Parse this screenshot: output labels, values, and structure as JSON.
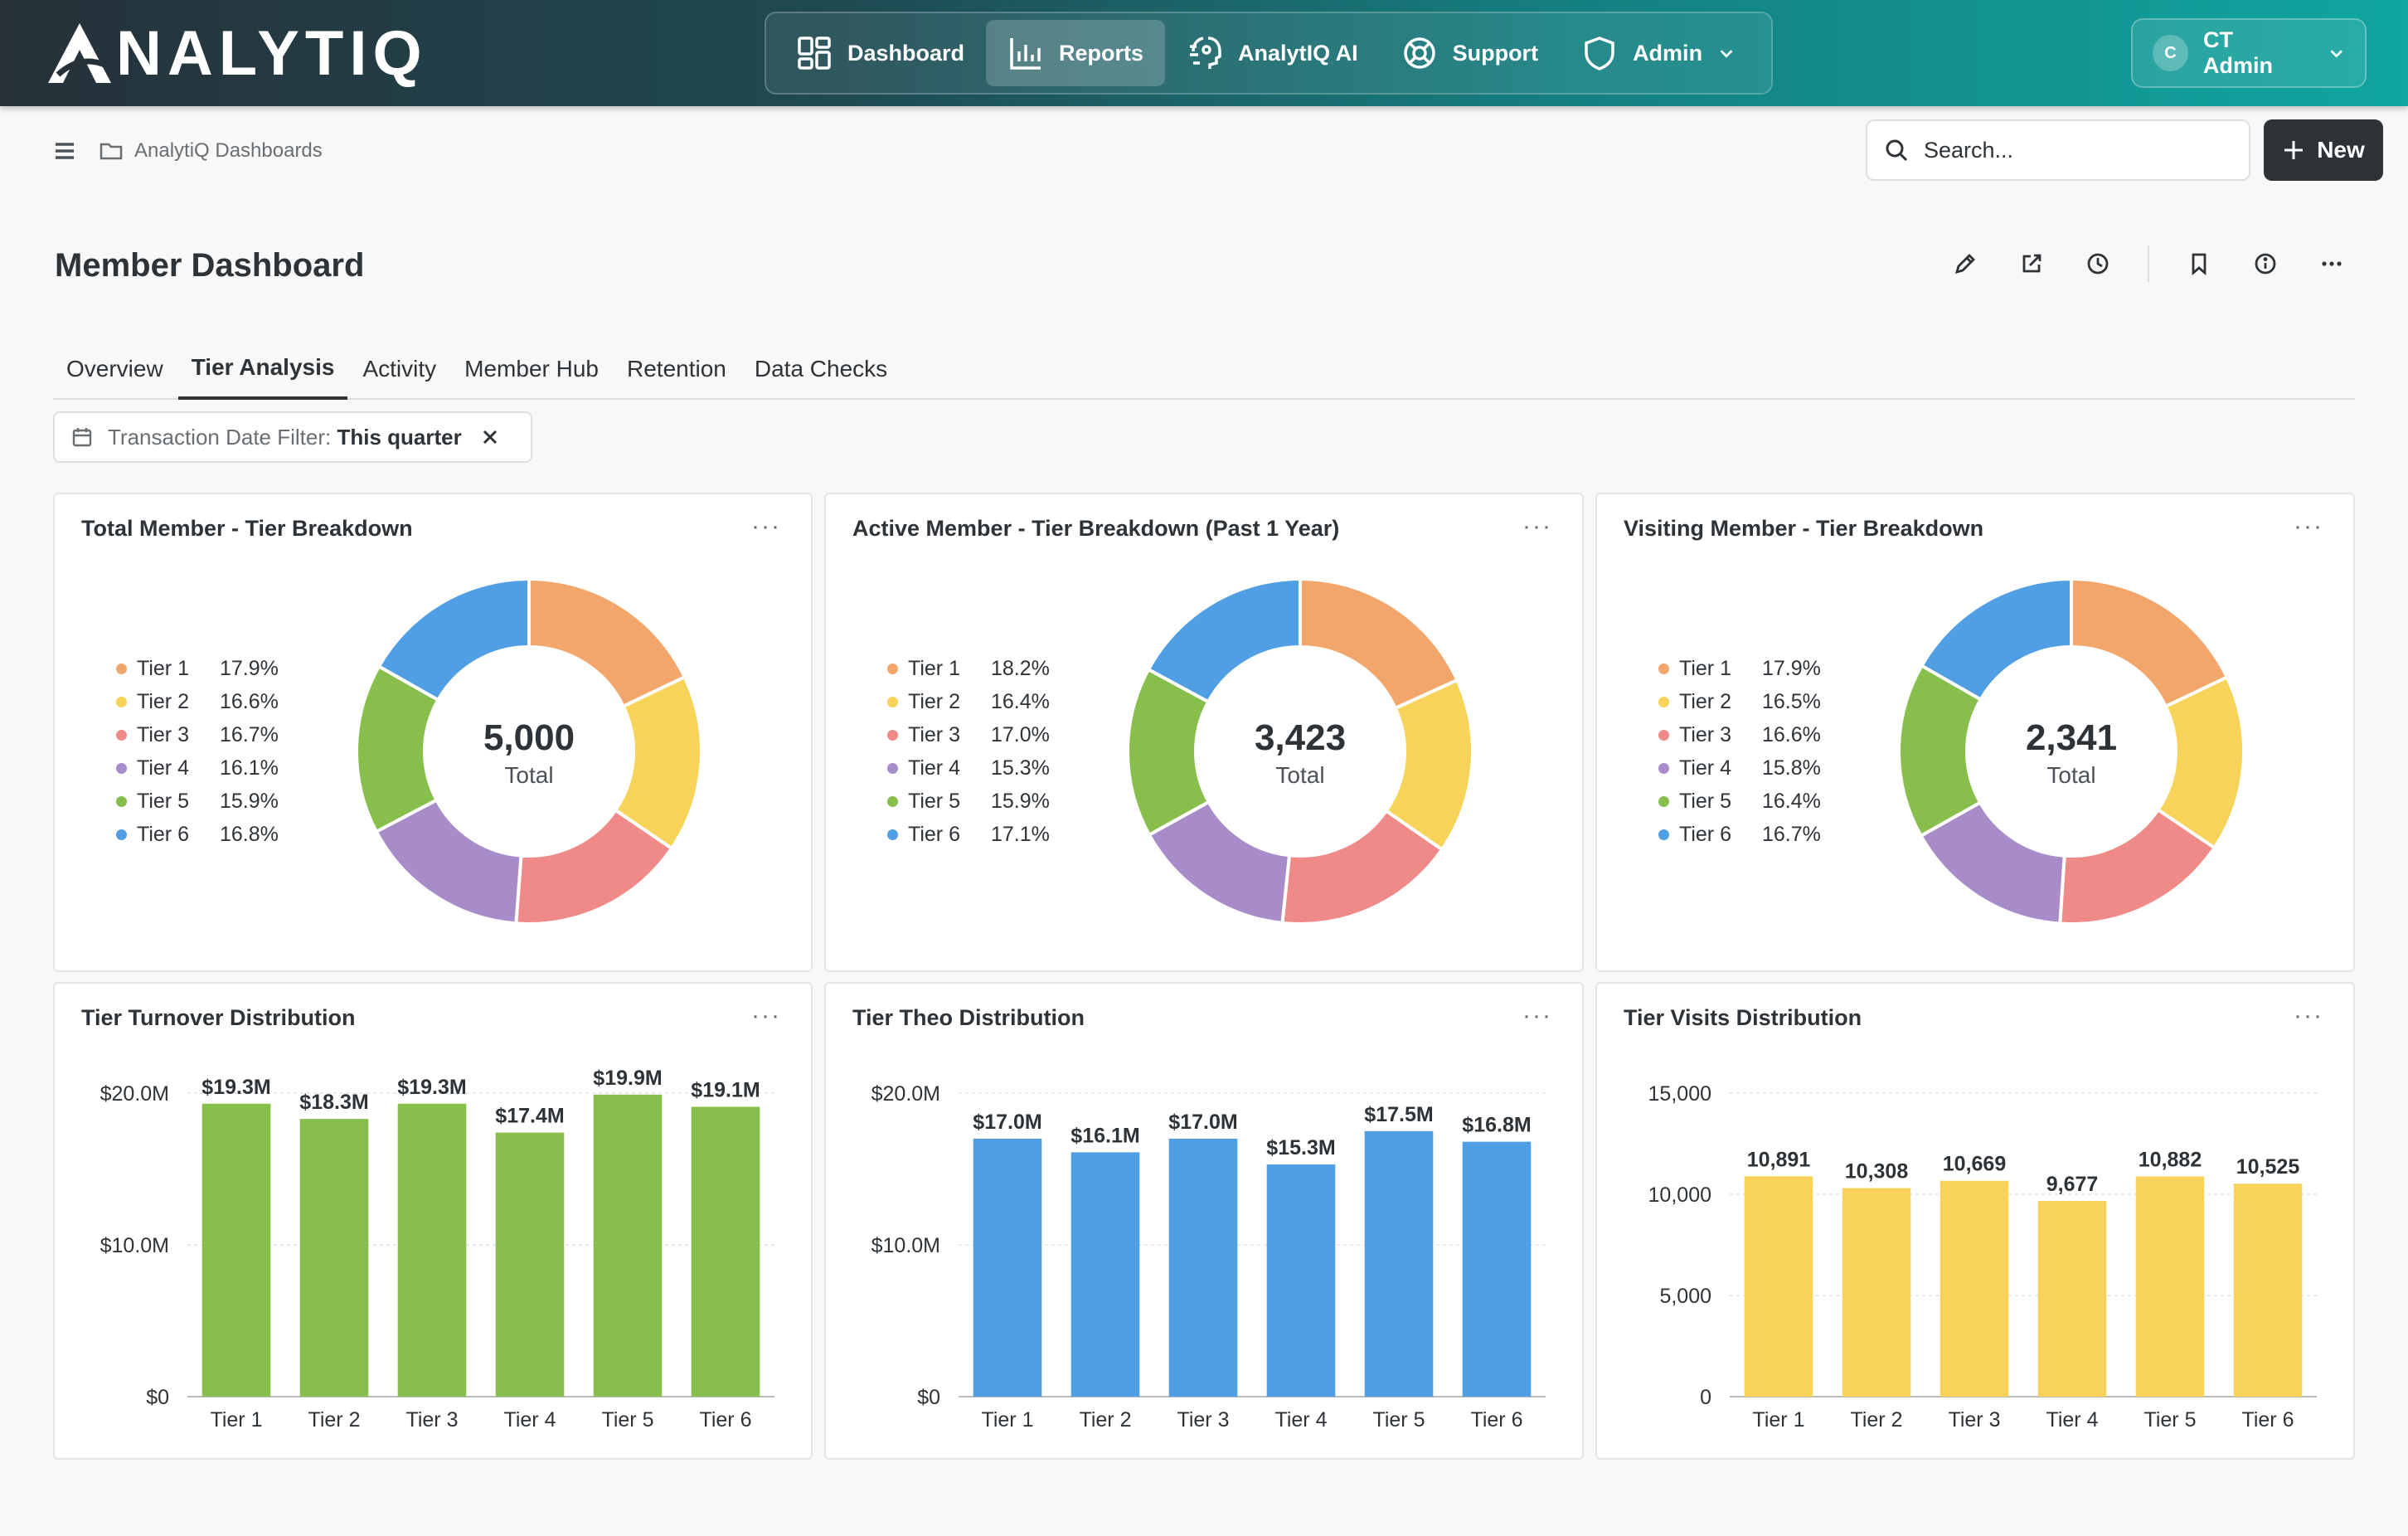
{
  "header": {
    "brand": "NALYTIQ",
    "nav": [
      {
        "label": "Dashboard",
        "icon": "dashboard-icon"
      },
      {
        "label": "Reports",
        "icon": "bar-chart-icon",
        "active": true
      },
      {
        "label": "AnalytIQ AI",
        "icon": "ai-head-icon"
      },
      {
        "label": "Support",
        "icon": "lifebuoy-icon"
      },
      {
        "label": "Admin",
        "icon": "shield-icon"
      }
    ],
    "user": {
      "initial": "C",
      "name": "CT Admin"
    }
  },
  "breadcrumb": {
    "folder": "AnalytiQ Dashboards"
  },
  "search": {
    "placeholder": "Search..."
  },
  "new_button": {
    "label": "New"
  },
  "page": {
    "title": "Member Dashboard"
  },
  "tabs": [
    {
      "label": "Overview"
    },
    {
      "label": "Tier Analysis",
      "active": true
    },
    {
      "label": "Activity"
    },
    {
      "label": "Member Hub"
    },
    {
      "label": "Retention"
    },
    {
      "label": "Data Checks"
    }
  ],
  "filter": {
    "label": "Transaction Date Filter:",
    "value": "This quarter"
  },
  "colors": {
    "tier1": "#f3a66c",
    "tier2": "#f8d35a",
    "tier3": "#ef8a88",
    "tier4": "#a88bc9",
    "tier5": "#88be4c",
    "tier6": "#509ee3",
    "green_bar": "#88be4c",
    "blue_bar": "#509ee3",
    "yellow_bar": "#f8d35a"
  },
  "chart_data": [
    {
      "type": "pie",
      "title": "Total Member - Tier Breakdown",
      "categories": [
        "Tier 1",
        "Tier 2",
        "Tier 3",
        "Tier 4",
        "Tier 5",
        "Tier 6"
      ],
      "values": [
        17.9,
        16.6,
        16.7,
        16.1,
        15.9,
        16.8
      ],
      "value_labels": [
        "17.9%",
        "16.6%",
        "16.7%",
        "16.1%",
        "15.9%",
        "16.8%"
      ],
      "center_value": "5,000",
      "center_label": "Total"
    },
    {
      "type": "pie",
      "title": "Active Member - Tier Breakdown (Past 1 Year)",
      "categories": [
        "Tier 1",
        "Tier 2",
        "Tier 3",
        "Tier 4",
        "Tier 5",
        "Tier 6"
      ],
      "values": [
        18.2,
        16.4,
        17.0,
        15.3,
        15.9,
        17.1
      ],
      "value_labels": [
        "18.2%",
        "16.4%",
        "17.0%",
        "15.3%",
        "15.9%",
        "17.1%"
      ],
      "center_value": "3,423",
      "center_label": "Total"
    },
    {
      "type": "pie",
      "title": "Visiting Member - Tier Breakdown",
      "categories": [
        "Tier 1",
        "Tier 2",
        "Tier 3",
        "Tier 4",
        "Tier 5",
        "Tier 6"
      ],
      "values": [
        17.9,
        16.5,
        16.6,
        15.8,
        16.4,
        16.7
      ],
      "value_labels": [
        "17.9%",
        "16.5%",
        "16.6%",
        "15.8%",
        "16.4%",
        "16.7%"
      ],
      "center_value": "2,341",
      "center_label": "Total"
    },
    {
      "type": "bar",
      "title": "Tier Turnover Distribution",
      "categories": [
        "Tier 1",
        "Tier 2",
        "Tier 3",
        "Tier 4",
        "Tier 5",
        "Tier 6"
      ],
      "values": [
        19.3,
        18.3,
        19.3,
        17.4,
        19.9,
        19.1
      ],
      "value_labels": [
        "$19.3M",
        "$18.3M",
        "$19.3M",
        "$17.4M",
        "$19.9M",
        "$19.1M"
      ],
      "yticks": [
        0,
        10,
        20
      ],
      "ytick_labels": [
        "$0",
        "$10.0M",
        "$20.0M"
      ],
      "ylim": [
        0,
        20
      ],
      "color": "#88be4c"
    },
    {
      "type": "bar",
      "title": "Tier Theo Distribution",
      "categories": [
        "Tier 1",
        "Tier 2",
        "Tier 3",
        "Tier 4",
        "Tier 5",
        "Tier 6"
      ],
      "values": [
        17.0,
        16.1,
        17.0,
        15.3,
        17.5,
        16.8
      ],
      "value_labels": [
        "$17.0M",
        "$16.1M",
        "$17.0M",
        "$15.3M",
        "$17.5M",
        "$16.8M"
      ],
      "yticks": [
        0,
        10,
        20
      ],
      "ytick_labels": [
        "$0",
        "$10.0M",
        "$20.0M"
      ],
      "ylim": [
        0,
        20
      ],
      "color": "#509ee3"
    },
    {
      "type": "bar",
      "title": "Tier Visits Distribution",
      "categories": [
        "Tier 1",
        "Tier 2",
        "Tier 3",
        "Tier 4",
        "Tier 5",
        "Tier 6"
      ],
      "values": [
        10891,
        10308,
        10669,
        9677,
        10882,
        10525
      ],
      "value_labels": [
        "10,891",
        "10,308",
        "10,669",
        "9,677",
        "10,882",
        "10,525"
      ],
      "yticks": [
        0,
        5000,
        10000,
        15000
      ],
      "ytick_labels": [
        "0",
        "5,000",
        "10,000",
        "15,000"
      ],
      "ylim": [
        0,
        15000
      ],
      "color": "#f8d35a"
    }
  ]
}
